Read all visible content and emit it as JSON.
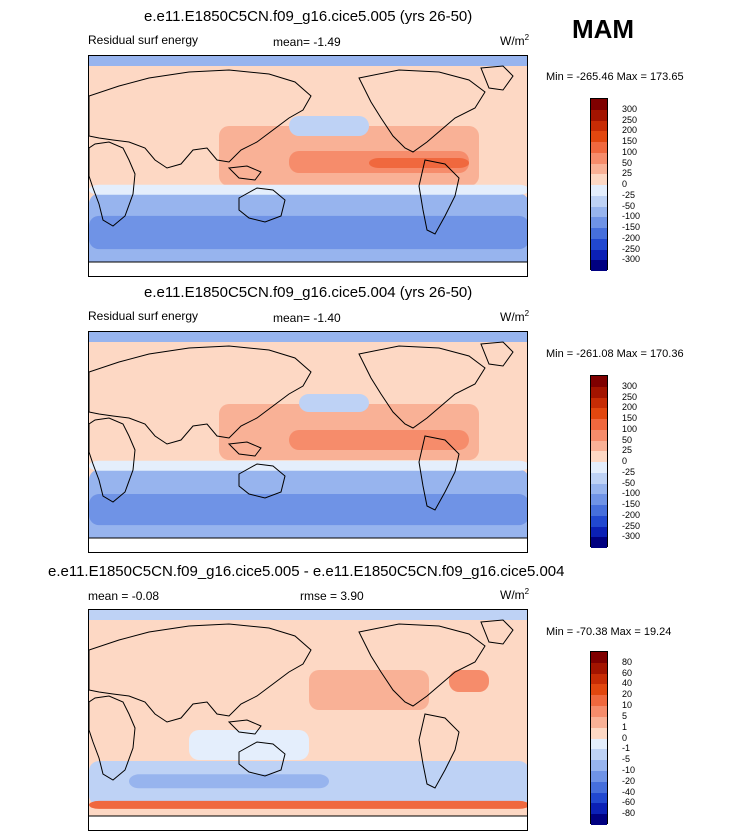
{
  "season": "MAM",
  "panels": [
    {
      "title": "e.e11.E1850C5CN.f09_g16.cice5.005 (yrs 26-50)",
      "left_label": "Residual surf energy",
      "center_label": "mean=  -1.49",
      "units": "W/m",
      "units_exp": "2",
      "minmax": "Min = -265.46 Max = 173.65",
      "colorbar": {
        "labels": [
          "300",
          "250",
          "200",
          "150",
          "100",
          "50",
          "25",
          "0",
          "-25",
          "-50",
          "-100",
          "-150",
          "-200",
          "-250",
          "-300"
        ],
        "colors": [
          "#7f0000",
          "#a31400",
          "#c72c05",
          "#e2470f",
          "#f0683e",
          "#f68c6b",
          "#f9b196",
          "#fdd8c4",
          "#e4eefc",
          "#bed2f5",
          "#97b4ee",
          "#6f93e6",
          "#466fdc",
          "#2148d0",
          "#0b20b5",
          "#000080"
        ]
      }
    },
    {
      "title": "e.e11.E1850C5CN.f09_g16.cice5.004 (yrs 26-50)",
      "left_label": "Residual surf energy",
      "center_label": "mean=  -1.40",
      "units": "W/m",
      "units_exp": "2",
      "minmax": "Min = -261.08 Max = 170.36",
      "colorbar": {
        "labels": [
          "300",
          "250",
          "200",
          "150",
          "100",
          "50",
          "25",
          "0",
          "-25",
          "-50",
          "-100",
          "-150",
          "-200",
          "-250",
          "-300"
        ],
        "colors": [
          "#7f0000",
          "#a31400",
          "#c72c05",
          "#e2470f",
          "#f0683e",
          "#f68c6b",
          "#f9b196",
          "#fdd8c4",
          "#e4eefc",
          "#bed2f5",
          "#97b4ee",
          "#6f93e6",
          "#466fdc",
          "#2148d0",
          "#0b20b5",
          "#000080"
        ]
      }
    },
    {
      "title": "e.e11.E1850C5CN.f09_g16.cice5.005 - e.e11.E1850C5CN.f09_g16.cice5.004",
      "left_label": "mean =  -0.08",
      "center_label": "rmse =   3.90",
      "units": "W/m",
      "units_exp": "2",
      "minmax": "Min = -70.38 Max =  19.24",
      "colorbar": {
        "labels": [
          "80",
          "60",
          "40",
          "20",
          "10",
          "5",
          "1",
          "0",
          "-1",
          "-5",
          "-10",
          "-20",
          "-40",
          "-60",
          "-80"
        ],
        "colors": [
          "#7f0000",
          "#a31400",
          "#c72c05",
          "#e2470f",
          "#f0683e",
          "#f68c6b",
          "#f9b196",
          "#fdd8c4",
          "#e4eefc",
          "#bed2f5",
          "#97b4ee",
          "#6f93e6",
          "#466fdc",
          "#2148d0",
          "#0b20b5",
          "#000080"
        ]
      }
    }
  ]
}
